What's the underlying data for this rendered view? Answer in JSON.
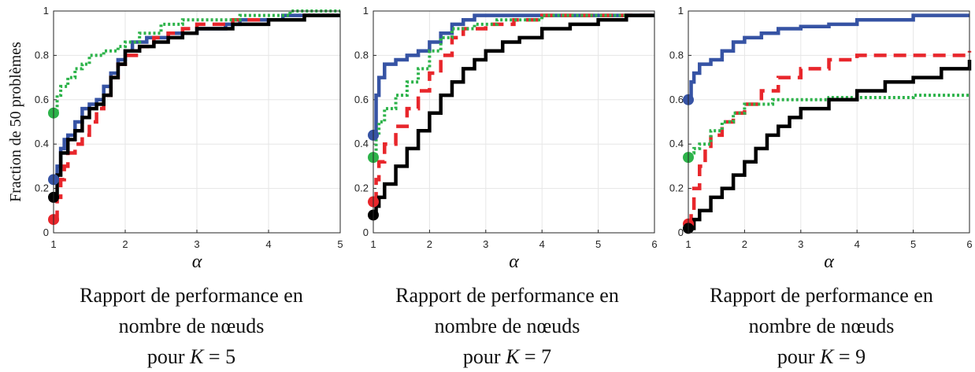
{
  "ylabel": "Fraction de 50 problèmes",
  "colors": {
    "blue": "#3653a4",
    "red": "#e8262b",
    "green": "#2db34a",
    "black": "#000000"
  },
  "chart_data": [
    {
      "type": "line",
      "xlabel": "α",
      "xlim": [
        1,
        5
      ],
      "ylim": [
        0,
        1
      ],
      "grid": true,
      "xticks": [
        "1",
        "2",
        "3",
        "4",
        "5"
      ],
      "yticks": [
        "0",
        "0.2",
        "0.4",
        "0.6",
        "0.8",
        "1"
      ],
      "caption": [
        "Rapport de performance en",
        "nombre de nœuds",
        "pour",
        "K",
        " = 5"
      ],
      "series": [
        {
          "color": "#3653a4",
          "style": "solid",
          "x": [
            1,
            1.05,
            1.1,
            1.15,
            1.2,
            1.3,
            1.4,
            1.5,
            1.6,
            1.7,
            1.8,
            1.9,
            2.0,
            2.1,
            2.3,
            2.6,
            3.0,
            3.4,
            3.6,
            4.2,
            5.0
          ],
          "y": [
            0.24,
            0.3,
            0.38,
            0.42,
            0.44,
            0.5,
            0.56,
            0.58,
            0.6,
            0.66,
            0.72,
            0.78,
            0.82,
            0.86,
            0.88,
            0.9,
            0.92,
            0.94,
            0.96,
            0.98,
            0.98
          ]
        },
        {
          "color": "#e8262b",
          "style": "dash",
          "x": [
            1,
            1.05,
            1.1,
            1.15,
            1.2,
            1.3,
            1.4,
            1.5,
            1.6,
            1.7,
            1.8,
            1.9,
            2.0,
            2.2,
            2.4,
            2.6,
            2.8,
            3.0,
            3.5,
            4.0,
            4.5,
            5.0
          ],
          "y": [
            0.06,
            0.16,
            0.24,
            0.3,
            0.36,
            0.4,
            0.44,
            0.5,
            0.56,
            0.62,
            0.7,
            0.76,
            0.8,
            0.84,
            0.88,
            0.9,
            0.92,
            0.94,
            0.96,
            0.96,
            0.98,
            0.98
          ]
        },
        {
          "color": "#2db34a",
          "style": "dot",
          "x": [
            1,
            1.05,
            1.1,
            1.2,
            1.3,
            1.4,
            1.5,
            1.7,
            1.9,
            2.0,
            2.2,
            2.5,
            2.8,
            3.2,
            3.6,
            4.0,
            4.3,
            5.0
          ],
          "y": [
            0.54,
            0.62,
            0.66,
            0.7,
            0.74,
            0.76,
            0.8,
            0.82,
            0.84,
            0.86,
            0.9,
            0.94,
            0.96,
            0.96,
            0.98,
            0.98,
            1.0,
            1.0
          ]
        },
        {
          "color": "#000000",
          "style": "solid",
          "x": [
            1,
            1.05,
            1.1,
            1.2,
            1.3,
            1.4,
            1.5,
            1.6,
            1.7,
            1.8,
            1.9,
            2.0,
            2.2,
            2.4,
            2.6,
            2.8,
            3.0,
            3.5,
            4.0,
            4.5,
            5.0
          ],
          "y": [
            0.16,
            0.26,
            0.36,
            0.42,
            0.46,
            0.52,
            0.56,
            0.58,
            0.62,
            0.7,
            0.76,
            0.82,
            0.84,
            0.86,
            0.88,
            0.9,
            0.92,
            0.94,
            0.96,
            0.98,
            0.98
          ]
        }
      ]
    },
    {
      "type": "line",
      "xlabel": "α",
      "xlim": [
        1,
        6
      ],
      "ylim": [
        0,
        1
      ],
      "grid": true,
      "xticks": [
        "1",
        "2",
        "3",
        "4",
        "5",
        "6"
      ],
      "yticks": [
        "0",
        "0.2",
        "0.4",
        "0.6",
        "0.8",
        "1"
      ],
      "caption": [
        "Rapport de performance en",
        "nombre de nœuds",
        "pour",
        "K",
        " = 7"
      ],
      "series": [
        {
          "color": "#3653a4",
          "style": "solid",
          "x": [
            1,
            1.05,
            1.1,
            1.2,
            1.4,
            1.6,
            1.8,
            2.0,
            2.2,
            2.4,
            2.6,
            2.8,
            3.2,
            4.0,
            6.0
          ],
          "y": [
            0.44,
            0.62,
            0.7,
            0.76,
            0.78,
            0.8,
            0.82,
            0.86,
            0.9,
            0.94,
            0.96,
            0.98,
            0.98,
            0.98,
            0.98
          ]
        },
        {
          "color": "#e8262b",
          "style": "dash",
          "x": [
            1,
            1.05,
            1.1,
            1.2,
            1.4,
            1.6,
            1.8,
            2.0,
            2.2,
            2.4,
            2.6,
            3.0,
            3.5,
            4.0,
            5.0,
            6.0
          ],
          "y": [
            0.14,
            0.24,
            0.32,
            0.4,
            0.48,
            0.56,
            0.64,
            0.72,
            0.8,
            0.88,
            0.92,
            0.94,
            0.96,
            0.98,
            0.98,
            0.98
          ]
        },
        {
          "color": "#2db34a",
          "style": "dot",
          "x": [
            1,
            1.05,
            1.1,
            1.2,
            1.4,
            1.6,
            1.8,
            2.0,
            2.2,
            2.4,
            2.8,
            3.2,
            4.0,
            5.0,
            6.0
          ],
          "y": [
            0.34,
            0.44,
            0.5,
            0.56,
            0.62,
            0.68,
            0.74,
            0.82,
            0.88,
            0.92,
            0.94,
            0.96,
            0.98,
            0.98,
            0.98
          ]
        },
        {
          "color": "#000000",
          "style": "solid",
          "x": [
            1,
            1.05,
            1.1,
            1.2,
            1.4,
            1.6,
            1.8,
            2.0,
            2.2,
            2.4,
            2.6,
            2.8,
            3.0,
            3.3,
            3.6,
            4.0,
            4.5,
            5.0,
            5.5,
            6.0
          ],
          "y": [
            0.08,
            0.12,
            0.16,
            0.22,
            0.3,
            0.38,
            0.46,
            0.54,
            0.62,
            0.68,
            0.74,
            0.78,
            0.82,
            0.86,
            0.88,
            0.92,
            0.94,
            0.96,
            0.98,
            0.98
          ]
        }
      ]
    },
    {
      "type": "line",
      "xlabel": "α",
      "xlim": [
        1,
        6
      ],
      "ylim": [
        0,
        1
      ],
      "grid": true,
      "xticks": [
        "1",
        "2",
        "3",
        "4",
        "5",
        "6"
      ],
      "yticks": [
        "0",
        "0.2",
        "0.4",
        "0.6",
        "0.8",
        "1"
      ],
      "caption": [
        "Rapport de performance en",
        "nombre de nœuds",
        "pour",
        "K",
        " = 9"
      ],
      "series": [
        {
          "color": "#3653a4",
          "style": "solid",
          "x": [
            1,
            1.05,
            1.1,
            1.2,
            1.4,
            1.6,
            1.8,
            2.0,
            2.3,
            2.6,
            3.0,
            3.5,
            4.0,
            5.0,
            6.0
          ],
          "y": [
            0.6,
            0.68,
            0.72,
            0.76,
            0.78,
            0.82,
            0.86,
            0.88,
            0.9,
            0.92,
            0.93,
            0.94,
            0.96,
            0.98,
            0.98
          ]
        },
        {
          "color": "#e8262b",
          "style": "dash",
          "x": [
            1,
            1.05,
            1.1,
            1.2,
            1.3,
            1.4,
            1.6,
            1.8,
            2.0,
            2.3,
            2.6,
            3.0,
            3.5,
            4.0,
            5.0,
            6.0
          ],
          "y": [
            0.04,
            0.1,
            0.2,
            0.3,
            0.38,
            0.44,
            0.5,
            0.54,
            0.58,
            0.64,
            0.7,
            0.74,
            0.78,
            0.8,
            0.8,
            0.82
          ]
        },
        {
          "color": "#2db34a",
          "style": "dot",
          "x": [
            1,
            1.05,
            1.1,
            1.2,
            1.4,
            1.6,
            1.8,
            2.0,
            2.5,
            3.0,
            3.5,
            4.0,
            5.0,
            6.0
          ],
          "y": [
            0.34,
            0.36,
            0.38,
            0.4,
            0.46,
            0.5,
            0.54,
            0.58,
            0.6,
            0.6,
            0.61,
            0.61,
            0.62,
            0.62
          ]
        },
        {
          "color": "#000000",
          "style": "solid",
          "x": [
            1,
            1.1,
            1.2,
            1.4,
            1.6,
            1.8,
            2.0,
            2.2,
            2.4,
            2.6,
            2.8,
            3.0,
            3.5,
            4.0,
            4.5,
            5.0,
            5.5,
            6.0
          ],
          "y": [
            0.02,
            0.06,
            0.1,
            0.16,
            0.2,
            0.26,
            0.32,
            0.38,
            0.44,
            0.48,
            0.52,
            0.56,
            0.6,
            0.64,
            0.68,
            0.7,
            0.74,
            0.78
          ]
        }
      ]
    }
  ]
}
